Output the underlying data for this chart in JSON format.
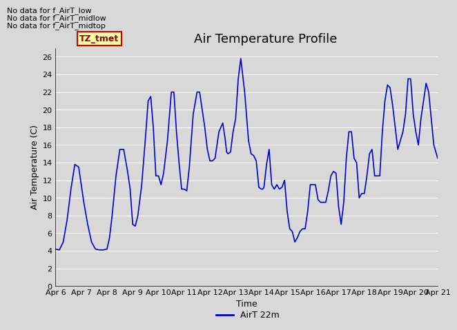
{
  "title": "Air Temperature Profile",
  "xlabel": "Time",
  "ylabel": "Air Temperature (C)",
  "legend_label": "AirT 22m",
  "annotations": [
    "No data for f_AirT_low",
    "No data for f_AirT_midlow",
    "No data for f_AirT_midtop"
  ],
  "tz_label": "TZ_tmet",
  "ylim": [
    0,
    27
  ],
  "yticks": [
    0,
    2,
    4,
    6,
    8,
    10,
    12,
    14,
    16,
    18,
    20,
    22,
    24,
    26
  ],
  "line_color": "#0000cc",
  "bg_color": "#d8d8d8",
  "plot_bg_color": "#d8d8d8",
  "title_fontsize": 13,
  "label_fontsize": 9,
  "annot_fontsize": 8,
  "tick_fontsize": 8,
  "x_data": [
    0.0,
    0.15,
    0.3,
    0.45,
    0.6,
    0.75,
    0.9,
    1.0,
    1.1,
    1.25,
    1.4,
    1.55,
    1.7,
    1.85,
    2.0,
    2.1,
    2.2,
    2.35,
    2.5,
    2.65,
    2.8,
    2.9,
    3.0,
    3.1,
    3.2,
    3.35,
    3.5,
    3.6,
    3.7,
    3.8,
    3.9,
    4.0,
    4.1,
    4.2,
    4.35,
    4.5,
    4.6,
    4.7,
    4.8,
    4.9,
    5.0,
    5.1,
    5.2,
    5.35,
    5.5,
    5.6,
    5.7,
    5.8,
    5.9,
    6.0,
    6.1,
    6.2,
    6.35,
    6.5,
    6.6,
    6.65,
    6.7,
    6.8,
    6.9,
    7.0,
    7.1,
    7.2,
    7.35,
    7.5,
    7.6,
    7.7,
    7.8,
    7.9,
    8.0,
    8.05,
    8.1,
    8.2,
    8.3,
    8.4,
    8.5,
    8.6,
    8.7,
    8.8,
    8.9,
    9.0,
    9.1,
    9.2,
    9.3,
    9.4,
    9.5,
    9.6,
    9.7,
    9.8,
    9.9,
    10.0,
    10.1,
    10.2,
    10.3,
    10.4,
    10.5,
    10.6,
    10.7,
    10.8,
    10.9,
    11.0,
    11.1,
    11.2,
    11.3,
    11.4,
    11.5,
    11.6,
    11.7,
    11.8,
    11.9,
    12.0,
    12.1,
    12.2,
    12.3,
    12.4,
    12.5,
    12.6,
    12.7,
    12.8,
    12.9,
    13.0,
    13.1,
    13.2,
    13.3,
    13.4,
    13.5,
    13.6,
    13.7,
    13.8,
    13.9,
    14.0,
    14.1,
    14.2,
    14.3,
    14.4,
    14.5,
    14.6,
    14.7,
    14.8,
    14.85
  ],
  "y_data": [
    4.2,
    4.1,
    5.0,
    7.5,
    11.0,
    13.8,
    13.5,
    11.5,
    9.5,
    7.0,
    5.0,
    4.2,
    4.1,
    4.1,
    4.2,
    5.5,
    8.0,
    12.5,
    15.5,
    15.5,
    13.0,
    11.0,
    7.0,
    6.8,
    8.0,
    11.5,
    17.0,
    21.0,
    21.5,
    18.0,
    12.5,
    12.5,
    11.5,
    12.8,
    16.5,
    22.0,
    22.0,
    17.5,
    14.0,
    11.0,
    11.0,
    10.8,
    13.5,
    19.5,
    22.0,
    22.0,
    20.0,
    18.0,
    15.5,
    14.2,
    14.2,
    14.5,
    17.5,
    18.5,
    16.5,
    15.2,
    15.0,
    15.2,
    17.5,
    19.0,
    23.5,
    25.8,
    22.0,
    16.5,
    15.0,
    14.8,
    14.2,
    11.2,
    11.0,
    11.0,
    11.2,
    13.8,
    15.5,
    11.5,
    11.0,
    11.5,
    11.0,
    11.2,
    12.0,
    8.5,
    6.5,
    6.2,
    5.0,
    5.5,
    6.2,
    6.5,
    6.5,
    8.5,
    11.5,
    11.5,
    11.5,
    9.8,
    9.5,
    9.5,
    9.5,
    10.8,
    12.5,
    13.0,
    12.8,
    9.0,
    7.0,
    9.5,
    14.5,
    17.5,
    17.5,
    14.5,
    14.0,
    10.0,
    10.5,
    10.5,
    12.5,
    15.0,
    15.5,
    12.5,
    12.5,
    12.5,
    17.5,
    21.0,
    22.8,
    22.5,
    20.5,
    18.0,
    15.5,
    16.5,
    17.5,
    19.5,
    23.5,
    23.5,
    19.5,
    17.5,
    16.0,
    19.0,
    21.0,
    23.0,
    22.0,
    19.0,
    16.0,
    15.0,
    14.5
  ],
  "xtick_positions": [
    0,
    1,
    2,
    3,
    4,
    5,
    6,
    7,
    8,
    9,
    10,
    11,
    12,
    13,
    14,
    14.85
  ],
  "xtick_labels": [
    "Apr 6",
    "Apr 7",
    "Apr 8",
    "Apr 9",
    "Apr 10",
    "Apr 11",
    "Apr 12",
    "Apr 13",
    "Apr 14",
    "Apr 15",
    "Apr 16",
    "Apr 17",
    "Apr 18",
    "Apr 19",
    "Apr 20",
    "Apr 21"
  ]
}
